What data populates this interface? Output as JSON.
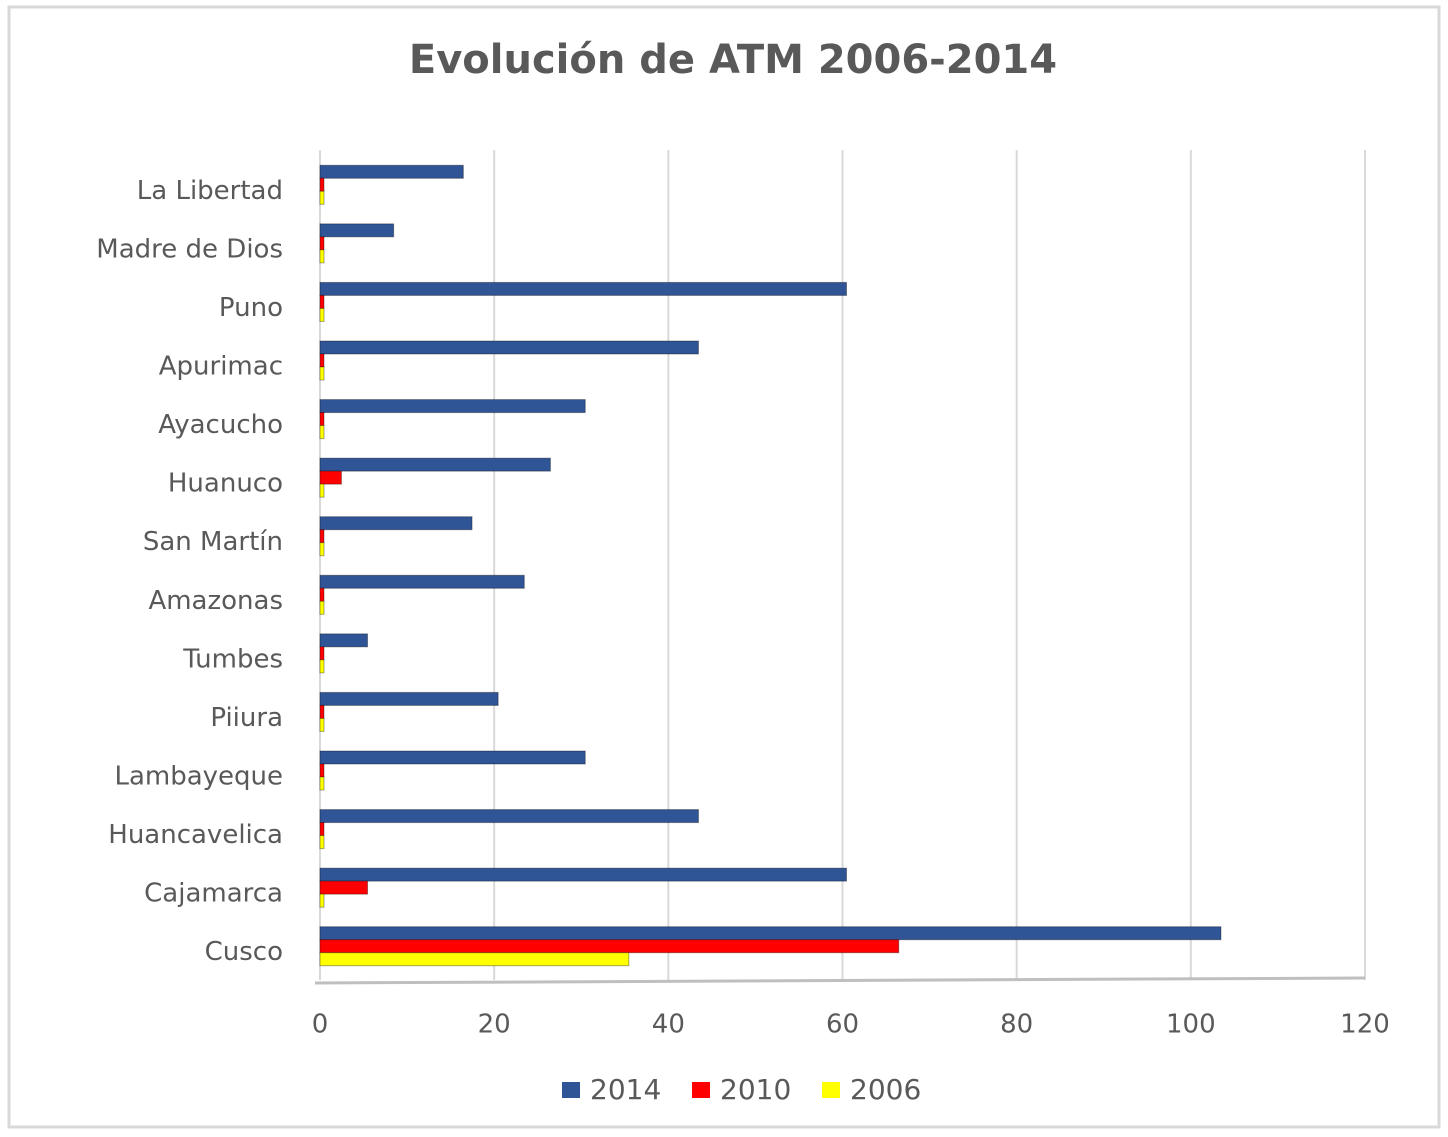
{
  "chart_data": {
    "type": "bar",
    "orientation": "horizontal",
    "title": "Evolución de  ATM 2006-2014",
    "categories": [
      "La Libertad",
      "Madre de Dios",
      "Puno",
      "Apurimac",
      "Ayacucho",
      "Huanuco",
      "San Martín",
      "Amazonas",
      "Tumbes",
      "Piiura",
      "Lambayeque",
      "Huancavelica",
      "Cajamarca",
      "Cusco"
    ],
    "series": [
      {
        "name": "2014",
        "color": "#2f5597",
        "values": [
          16,
          8,
          60,
          43,
          30,
          26,
          17,
          23,
          5,
          20,
          30,
          43,
          60,
          103
        ]
      },
      {
        "name": "2010",
        "color": "#ff0000",
        "values": [
          0,
          0,
          0,
          0,
          0,
          2,
          0,
          0,
          0,
          0,
          0,
          0,
          5,
          66
        ]
      },
      {
        "name": "2006",
        "color": "#ffff00",
        "values": [
          0,
          0,
          0,
          0,
          0,
          0,
          0,
          0,
          0,
          0,
          0,
          0,
          0,
          35
        ]
      }
    ],
    "xlim": [
      0,
      120
    ],
    "xticks": [
      0,
      20,
      40,
      60,
      80,
      100,
      120
    ],
    "grid": true,
    "legend": "bottom"
  }
}
